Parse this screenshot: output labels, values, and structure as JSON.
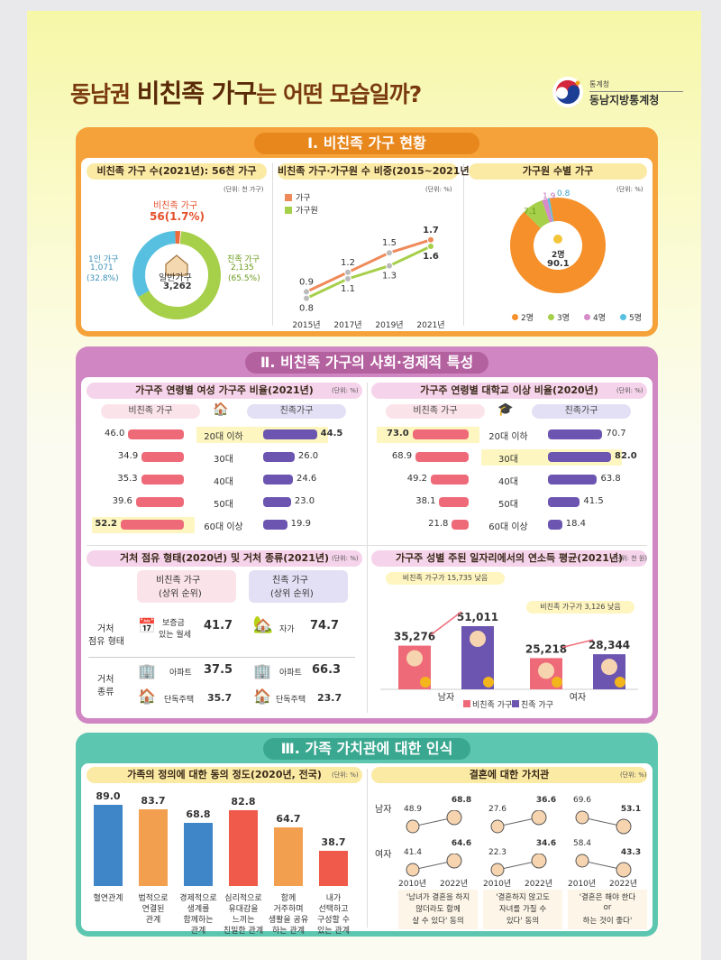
{
  "header": {
    "title_pre": "동남권 ",
    "title_bold": "비친족 가구",
    "title_post": "는 어떤 모습일까?",
    "logo_small": "통계청",
    "logo_name": "동남지방통계청",
    "colors": {
      "orange": "#f5a23a",
      "pink": "#cf86c2",
      "teal": "#5cc6b0",
      "red": "#ef6a78",
      "purple": "#6b55b0",
      "green": "#a6cf4a",
      "blue": "#57c0e0"
    }
  },
  "sec1": {
    "heading": "Ⅰ. 비친족 가구 현황",
    "p1": {
      "title": "비친족 가구 수(2021년): 56천 가구",
      "unit": "(단위: 천 가구)",
      "center_label": "일반가구",
      "center_value": "3,262",
      "nonfam_label": "비친족 가구",
      "nonfam_value": "56(1.7%)",
      "single_label": "1인 가구",
      "single_value": "1,071",
      "single_pct": "(32.8%)",
      "family_label": "친족 가구",
      "family_value": "2,135",
      "family_pct": "(65.5%)"
    },
    "p2": {
      "title": "비친족 가구·가구원 수 비중(2015~2021년)",
      "unit": "(단위: %)",
      "legend": [
        "가구",
        "가구원"
      ]
    },
    "p3": {
      "title": "가구원 수별 가구",
      "unit": "(단위: %)",
      "center_label": "2명",
      "center_value": "90.1",
      "legend": [
        "2명",
        "3명",
        "4명",
        "5명"
      ]
    }
  },
  "sec2": {
    "heading": "Ⅱ. 비친족 가구의 사회·경제적 특성",
    "p1": {
      "title": "가구주 연령별 여성 가구주 비율(2021년)",
      "unit": "(단위: %)",
      "left_label": "비친족 가구",
      "right_label": "친족가구"
    },
    "p2": {
      "title": "가구주 연령별 대학교 이상 비율(2020년)",
      "unit": "(단위: %)",
      "left_label": "비친족 가구",
      "right_label": "친족가구"
    },
    "ages": [
      "20대 이하",
      "30대",
      "40대",
      "50대",
      "60대 이상"
    ],
    "p3": {
      "title": "거처 점유 형태(2020년) 및 거처 종류(2021년)",
      "unit": "(단위: %)",
      "col1": "비친족 가구",
      "col1_sub": "(상위 순위)",
      "col2": "친족 가구",
      "col2_sub": "(상위 순위)",
      "row1": "거처",
      "row1b": "점유 형태",
      "row2": "거처",
      "row2b": "종류",
      "nf_tenure_a": "보증금",
      "nf_tenure_b": "있는 월세",
      "nf_tenure_v": "41.7",
      "f_tenure": "자가",
      "f_tenure_v": "74.7",
      "nf_apt": "아파트",
      "nf_apt_v": "37.5",
      "f_apt": "아파트",
      "f_apt_v": "66.3",
      "nf_house": "단독주택",
      "nf_house_v": "35.7",
      "f_house": "단독주택",
      "f_house_v": "23.7"
    },
    "p4": {
      "title": "가구주 성별 주된 일자리에서의 연소득 평균(2021년)",
      "unit": "(단위: 천 원)",
      "note_m": "비친족 가구가 15,735 낮음",
      "note_f": "비친족 가구가 3,126 낮음",
      "male": "남자",
      "female": "여자",
      "legend": [
        "비친족 가구",
        "친족 가구"
      ]
    }
  },
  "sec3": {
    "heading": "Ⅲ. 가족 가치관에 대한 인식",
    "p1": {
      "title": "가족의 정의에 대한 동의 정도(2020년, 전국)",
      "unit": "(단위: %)"
    },
    "p2": {
      "title": "결혼에 대한 가치관",
      "unit": "(단위: %)",
      "male": "남자",
      "female": "여자",
      "captions": [
        [
          "'남녀가 결혼을 하지",
          "않더라도 함께",
          "살 수 있다' 동의"
        ],
        [
          "'결혼하지 않고도",
          "자녀를 가질 수",
          "있다' 동의"
        ],
        [
          "'결혼은 해야 한다",
          "or",
          "하는 것이 좋다'"
        ]
      ]
    }
  },
  "chart_data": [
    {
      "type": "pie",
      "title": "비친족 가구 수(2021년): 56천 가구",
      "categories": [
        "친족 가구",
        "1인 가구",
        "비친족 가구"
      ],
      "values": [
        65.5,
        32.8,
        1.7
      ],
      "counts": [
        2135,
        1071,
        56
      ]
    },
    {
      "type": "line",
      "title": "비친족 가구·가구원 수 비중(2015~2021년)",
      "x": [
        "2015년",
        "2017년",
        "2019년",
        "2021년"
      ],
      "series": [
        {
          "name": "가구",
          "values": [
            0.9,
            1.2,
            1.5,
            1.7
          ],
          "color": "#ef8a5a"
        },
        {
          "name": "가구원",
          "values": [
            0.8,
            1.1,
            1.3,
            1.6
          ],
          "color": "#a6cf4a"
        }
      ]
    },
    {
      "type": "pie",
      "title": "가구원 수별 가구",
      "categories": [
        "2명",
        "3명",
        "4명",
        "5명"
      ],
      "values": [
        90.1,
        7.1,
        1.9,
        0.8
      ],
      "colors": [
        "#f5902a",
        "#a6cf4a",
        "#d68ac8",
        "#57c0e0"
      ]
    },
    {
      "type": "bar",
      "title": "가구주 연령별 여성 가구주 비율(2021년)",
      "categories": [
        "20대 이하",
        "30대",
        "40대",
        "50대",
        "60대 이상"
      ],
      "series": [
        {
          "name": "비친족 가구",
          "values": [
            46.0,
            34.9,
            35.3,
            39.6,
            52.2
          ]
        },
        {
          "name": "친족가구",
          "values": [
            44.5,
            26.0,
            24.6,
            23.0,
            19.9
          ]
        }
      ]
    },
    {
      "type": "bar",
      "title": "가구주 연령별 대학교 이상 비율(2020년)",
      "categories": [
        "20대 이하",
        "30대",
        "40대",
        "50대",
        "60대 이상"
      ],
      "series": [
        {
          "name": "비친족 가구",
          "values": [
            73.0,
            68.9,
            49.2,
            38.1,
            21.8
          ]
        },
        {
          "name": "친족가구",
          "values": [
            70.7,
            82.0,
            63.8,
            41.5,
            18.4
          ]
        }
      ]
    },
    {
      "type": "bar",
      "title": "가구주 성별 주된 일자리에서의 연소득 평균(2021년)",
      "categories": [
        "남자",
        "여자"
      ],
      "series": [
        {
          "name": "비친족 가구",
          "values": [
            35276,
            25218
          ]
        },
        {
          "name": "친족 가구",
          "values": [
            51011,
            28344
          ]
        }
      ]
    },
    {
      "type": "bar",
      "title": "가족의 정의에 대한 동의 정도(2020년, 전국)",
      "categories": [
        "혈연관계",
        "법적으로 연결된 관계",
        "경제적으로 생계를 함께하는 관계",
        "심리적으로 유대감을 느끼는 친밀한 관계",
        "함께 거주하며 생활을 공유하는 관계",
        "내가 선택하고 구성할 수 있는 관계"
      ],
      "values": [
        89.0,
        83.7,
        68.8,
        82.8,
        64.7,
        38.7
      ]
    },
    {
      "type": "line",
      "title": "결혼에 대한 가치관",
      "x": [
        "2010년",
        "2022년"
      ],
      "groups": [
        {
          "caption": "'남녀가 결혼을 하지 않더라도 함께 살 수 있다' 동의",
          "series": [
            {
              "name": "남자",
              "values": [
                48.9,
                68.8
              ]
            },
            {
              "name": "여자",
              "values": [
                41.4,
                64.6
              ]
            }
          ]
        },
        {
          "caption": "'결혼하지 않고도 자녀를 가질 수 있다' 동의",
          "series": [
            {
              "name": "남자",
              "values": [
                27.6,
                36.6
              ]
            },
            {
              "name": "여자",
              "values": [
                22.3,
                34.6
              ]
            }
          ]
        },
        {
          "caption": "'결혼은 해야 한다 or 하는 것이 좋다'",
          "series": [
            {
              "name": "남자",
              "values": [
                69.6,
                53.1
              ]
            },
            {
              "name": "여자",
              "values": [
                58.4,
                43.3
              ]
            }
          ]
        }
      ]
    }
  ]
}
